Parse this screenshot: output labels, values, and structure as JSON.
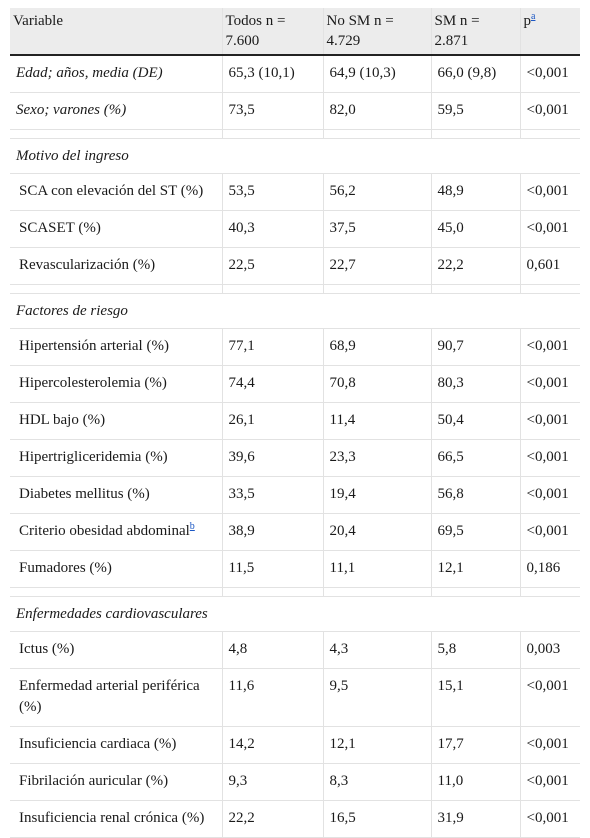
{
  "header": {
    "variable": "Variable",
    "todos": "Todos n = 7.600",
    "nosm": "No SM n = 4.729",
    "sm": "SM n = 2.871",
    "p": "p",
    "p_sup": "a"
  },
  "rows": {
    "edad": {
      "label": "Edad; años, media (DE)",
      "todos": "65,3 (10,1)",
      "nosm": "64,9 (10,3)",
      "sm": "66,0 (9,8)",
      "p": "<0,001"
    },
    "sexo": {
      "label": "Sexo; varones (%)",
      "todos": "73,5",
      "nosm": "82,0",
      "sm": "59,5",
      "p": "<0,001"
    },
    "motivo": {
      "label": "Motivo del ingreso"
    },
    "sca_st": {
      "label": "SCA con elevación del ST (%)",
      "todos": "53,5",
      "nosm": "56,2",
      "sm": "48,9",
      "p": "<0,001"
    },
    "scaset": {
      "label": "SCASET (%)",
      "todos": "40,3",
      "nosm": "37,5",
      "sm": "45,0",
      "p": "<0,001"
    },
    "revasc": {
      "label": "Revascularización (%)",
      "todos": "22,5",
      "nosm": "22,7",
      "sm": "22,2",
      "p": "0,601"
    },
    "factores": {
      "label": "Factores de riesgo"
    },
    "hta": {
      "label": "Hipertensión arterial (%)",
      "todos": "77,1",
      "nosm": "68,9",
      "sm": "90,7",
      "p": "<0,001"
    },
    "hiperchol": {
      "label": "Hipercolesterolemia (%)",
      "todos": "74,4",
      "nosm": "70,8",
      "sm": "80,3",
      "p": "<0,001"
    },
    "hdl": {
      "label": "HDL bajo (%)",
      "todos": "26,1",
      "nosm": "11,4",
      "sm": "50,4",
      "p": "<0,001"
    },
    "hipertg": {
      "label": "Hipertrigliceridemia (%)",
      "todos": "39,6",
      "nosm": "23,3",
      "sm": "66,5",
      "p": "<0,001"
    },
    "diabetes": {
      "label": "Diabetes mellitus (%)",
      "todos": "33,5",
      "nosm": "19,4",
      "sm": "56,8",
      "p": "<0,001"
    },
    "obesidad": {
      "label": "Criterio obesidad abdominal",
      "sup": "b",
      "todos": "38,9",
      "nosm": "20,4",
      "sm": "69,5",
      "p": "<0,001"
    },
    "fumadores": {
      "label": "Fumadores (%)",
      "todos": "11,5",
      "nosm": "11,1",
      "sm": "12,1",
      "p": "0,186"
    },
    "enfcv": {
      "label": "Enfermedades cardiovasculares"
    },
    "ictus": {
      "label": "Ictus (%)",
      "todos": "4,8",
      "nosm": "4,3",
      "sm": "5,8",
      "p": "0,003"
    },
    "eap": {
      "label": "Enfermedad arterial periférica (%)",
      "todos": "11,6",
      "nosm": "9,5",
      "sm": "15,1",
      "p": "<0,001"
    },
    "ic": {
      "label": "Insuficiencia cardiaca (%)",
      "todos": "14,2",
      "nosm": "12,1",
      "sm": "17,7",
      "p": "<0,001"
    },
    "fa": {
      "label": "Fibrilación auricular (%)",
      "todos": "9,3",
      "nosm": "8,3",
      "sm": "11,0",
      "p": "<0,001"
    },
    "irc": {
      "label": "Insuficiencia renal crónica (%)",
      "todos": "22,2",
      "nosm": "16,5",
      "sm": "31,9",
      "p": "<0,001"
    }
  }
}
